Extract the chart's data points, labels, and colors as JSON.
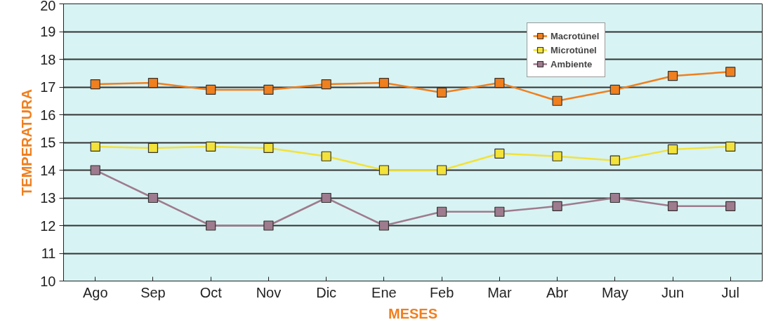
{
  "chart_data": {
    "type": "line",
    "xlabel": "MESES",
    "ylabel": "TEMPERATURA",
    "categories": [
      "Ago",
      "Sep",
      "Oct",
      "Nov",
      "Dic",
      "Ene",
      "Feb",
      "Mar",
      "Abr",
      "May",
      "Jun",
      "Jul"
    ],
    "series": [
      {
        "name": "Macrotúnel",
        "color": "#f07f1e",
        "values": [
          17.1,
          17.15,
          16.9,
          16.9,
          17.1,
          17.15,
          16.8,
          17.15,
          16.5,
          16.9,
          17.4,
          17.55
        ]
      },
      {
        "name": "Microtúnel",
        "color": "#f2e23a",
        "values": [
          14.85,
          14.8,
          14.85,
          14.8,
          14.5,
          14.0,
          14.0,
          14.6,
          14.5,
          14.35,
          14.75,
          14.85
        ]
      },
      {
        "name": "Ambiente",
        "color": "#9e7b8e",
        "values": [
          14.0,
          13.0,
          12.0,
          12.0,
          13.0,
          12.0,
          12.5,
          12.5,
          12.7,
          13.0,
          12.7,
          12.7
        ]
      }
    ],
    "ylim": [
      10,
      20
    ],
    "yticks": [
      10,
      11,
      12,
      13,
      14,
      15,
      16,
      17,
      18,
      19,
      20
    ],
    "grid": "y",
    "legend": "top right",
    "marker": "square",
    "line_style": "solid"
  }
}
